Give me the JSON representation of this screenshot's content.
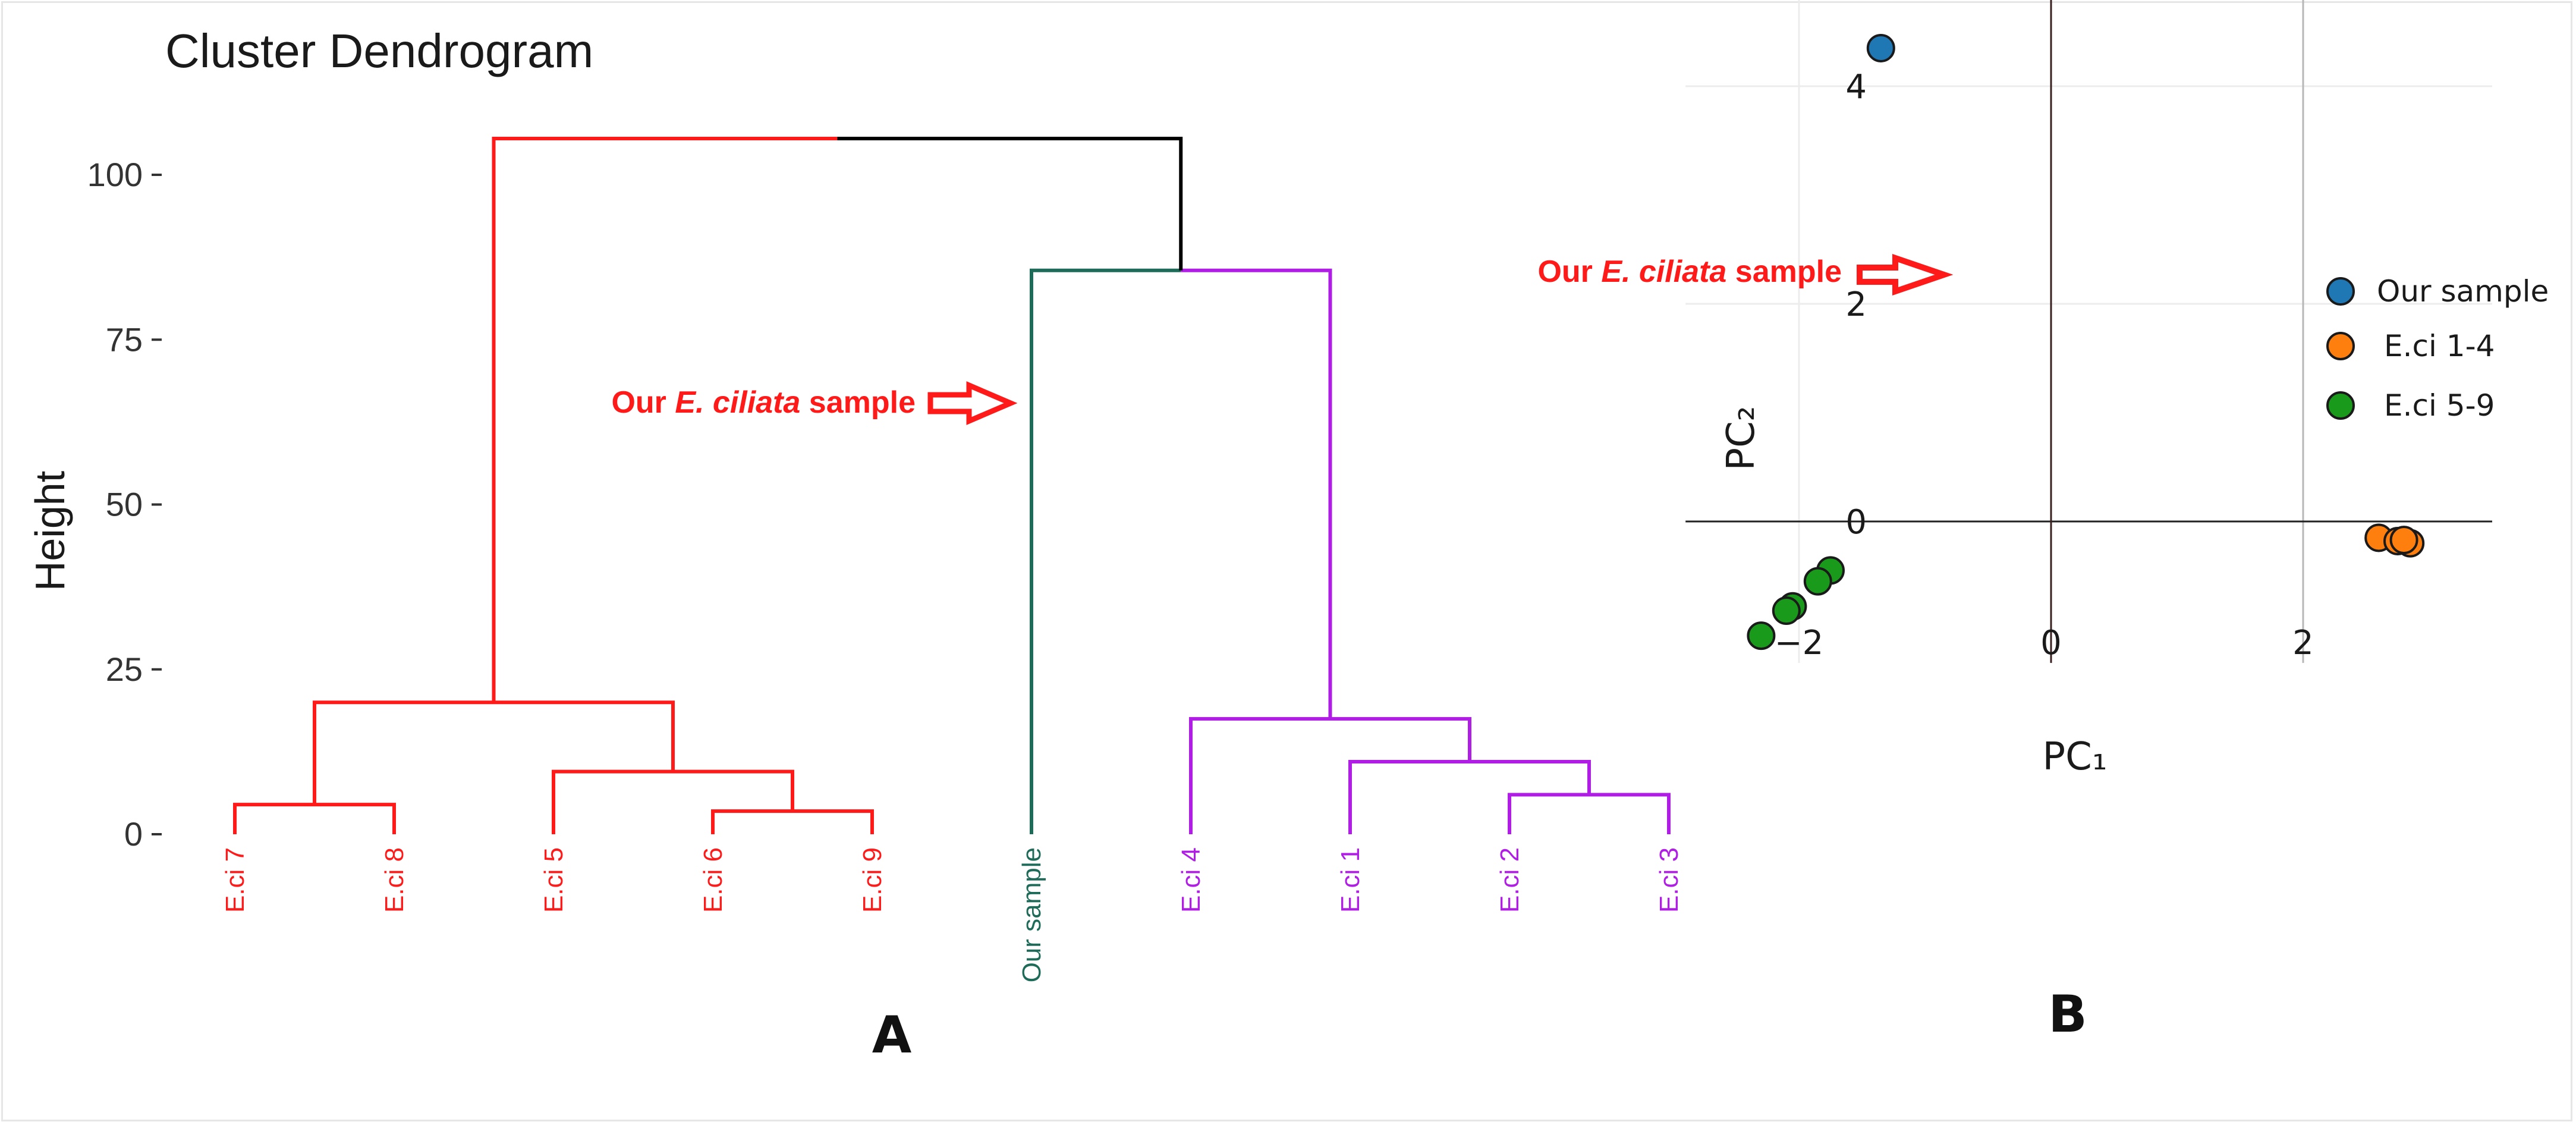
{
  "chart_data": [
    {
      "type": "dendrogram",
      "title": "Cluster Dendrogram",
      "ylabel": "Height",
      "ylim": [
        0,
        110
      ],
      "yticks": [
        0,
        25,
        50,
        75,
        100
      ],
      "leaves": [
        {
          "label": "E.ci 7",
          "color": "#ff1a1a"
        },
        {
          "label": "E.ci 8",
          "color": "#ff1a1a"
        },
        {
          "label": "E.ci 5",
          "color": "#ff1a1a"
        },
        {
          "label": "E.ci 6",
          "color": "#ff1a1a"
        },
        {
          "label": "E.ci 9",
          "color": "#ff1a1a"
        },
        {
          "label": "Our sample",
          "color": "#1f6b5a"
        },
        {
          "label": "E.ci 4",
          "color": "#b01ee6"
        },
        {
          "label": "E.ci 1",
          "color": "#b01ee6"
        },
        {
          "label": "E.ci 2",
          "color": "#b01ee6"
        },
        {
          "label": "E.ci 3",
          "color": "#b01ee6"
        }
      ],
      "merges": [
        {
          "left": "E.ci 7",
          "right": "E.ci 8",
          "height": 4.5
        },
        {
          "left": "E.ci 6",
          "right": "E.ci 9",
          "height": 3.5
        },
        {
          "left": "E.ci 5",
          "right": "E.ci 6+9",
          "height": 9.5
        },
        {
          "left": "E.ci 7+8",
          "right": "E.ci 5+6+9",
          "height": 20
        },
        {
          "left": "E.ci 2",
          "right": "E.ci 3",
          "height": 6
        },
        {
          "left": "E.ci 1",
          "right": "E.ci 2+3",
          "height": 11
        },
        {
          "left": "E.ci 4",
          "right": "E.ci 1+2+3",
          "height": 17.5
        },
        {
          "left": "Our sample",
          "right": "E.ci 1-4",
          "height": 85.5
        },
        {
          "left": "E.ci 5-9",
          "right": "Our sample + E.ci 1-4",
          "height": 105.5
        }
      ],
      "annotation": {
        "prefix": "Our ",
        "italic": "E. ciliata",
        "suffix": " sample",
        "color": "#ff1a1a"
      },
      "panel_label": "A"
    },
    {
      "type": "scatter",
      "xlabel": "PC₁",
      "ylabel": "PC₂",
      "xlim": [
        -2.9,
        3.5
      ],
      "ylim": [
        -1.3,
        5.0
      ],
      "xticks": [
        -2,
        0,
        2
      ],
      "xtick_labels": [
        "−2",
        "0",
        "2"
      ],
      "yticks": [
        0,
        2,
        4
      ],
      "yticks_labels": [
        "0",
        "2",
        "4"
      ],
      "series": [
        {
          "name": "Our sample",
          "color": "#1f77b4",
          "points": [
            [
              -1.35,
              4.35
            ]
          ]
        },
        {
          "name": "E.ci 1-4",
          "color": "#ff7f0e",
          "points": [
            [
              2.6,
              -0.15
            ],
            [
              2.75,
              -0.18
            ],
            [
              2.85,
              -0.2
            ],
            [
              2.8,
              -0.17
            ]
          ]
        },
        {
          "name": "E.ci 5-9",
          "color": "#1a9a1a",
          "points": [
            [
              -1.75,
              -0.45
            ],
            [
              -1.85,
              -0.55
            ],
            [
              -2.05,
              -0.78
            ],
            [
              -2.1,
              -0.82
            ],
            [
              -2.3,
              -1.05
            ]
          ]
        }
      ],
      "legend": "right",
      "annotation": {
        "prefix": "Our ",
        "italic": "E. ciliata",
        "suffix": " sample",
        "color": "#ff1a1a"
      },
      "panel_label": "B"
    }
  ]
}
